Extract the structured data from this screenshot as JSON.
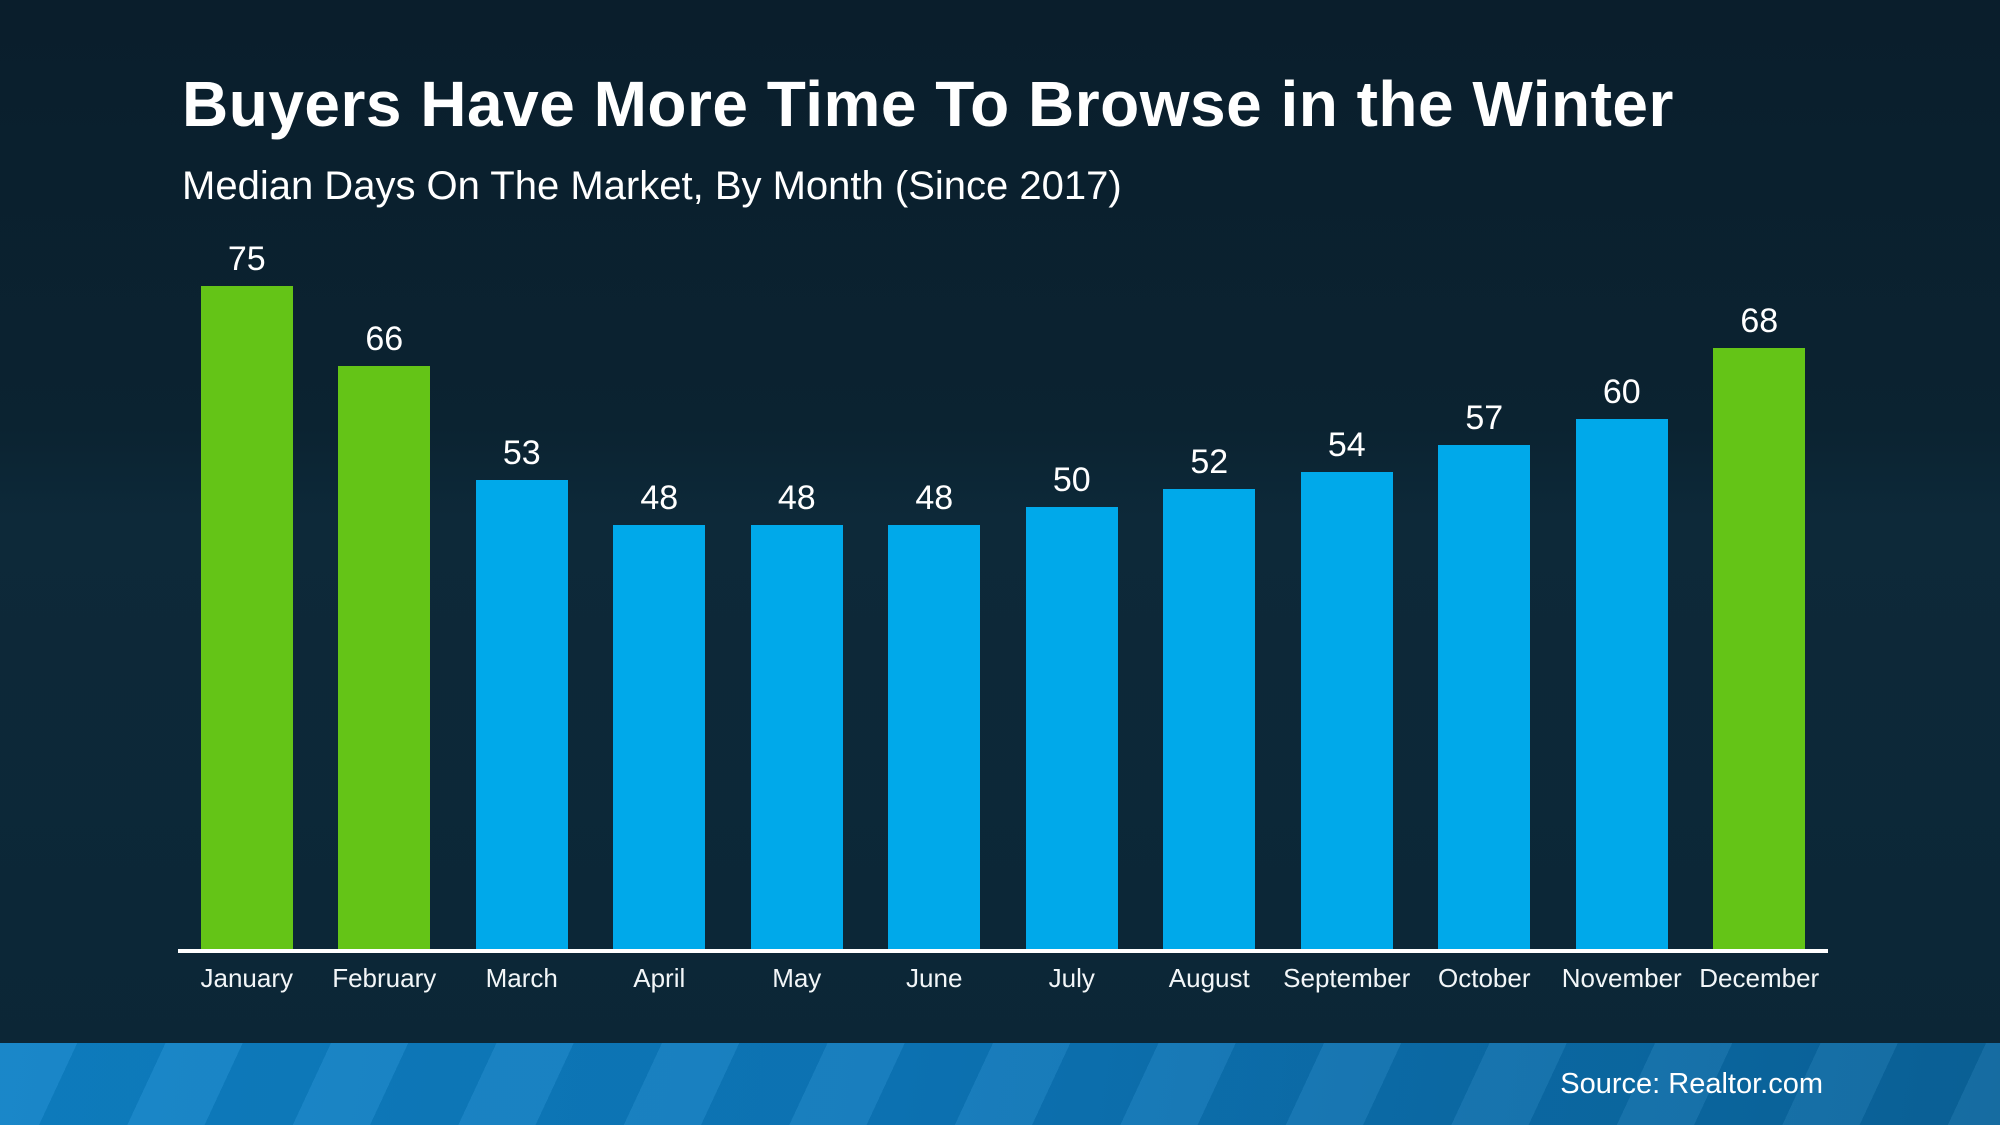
{
  "header": {
    "title": "Buyers Have More Time To Browse in the Winter",
    "subtitle": "Median Days On The Market, By Month (Since 2017)"
  },
  "chart_data": {
    "type": "bar",
    "title": "Buyers Have More Time To Browse in the Winter",
    "subtitle": "Median Days On The Market, By Month (Since 2017)",
    "categories": [
      "January",
      "February",
      "March",
      "April",
      "May",
      "June",
      "July",
      "August",
      "September",
      "October",
      "November",
      "December"
    ],
    "values": [
      75,
      66,
      53,
      48,
      48,
      48,
      50,
      52,
      54,
      57,
      60,
      68
    ],
    "point_colors": [
      "#64c417",
      "#64c417",
      "#00a9ea",
      "#00a9ea",
      "#00a9ea",
      "#00a9ea",
      "#00a9ea",
      "#00a9ea",
      "#00a9ea",
      "#00a9ea",
      "#00a9ea",
      "#64c417"
    ],
    "highlighted_months": [
      "January",
      "February",
      "December"
    ],
    "xlabel": "",
    "ylabel": "",
    "ylim": [
      0,
      75
    ],
    "grid": false,
    "legend": "none",
    "value_labels": "above bars"
  },
  "colors": {
    "winter_bar_green": "#64c417",
    "regular_bar_blue": "#00a9ea",
    "axis_line": "#ffffff",
    "background_top": "#0a1e2c",
    "background_bottom": "#0c2636",
    "footer_left": "#0e81c6",
    "footer_right": "#0a649c",
    "text": "#ffffff"
  },
  "footer": {
    "source": "Source: Realtor.com"
  }
}
